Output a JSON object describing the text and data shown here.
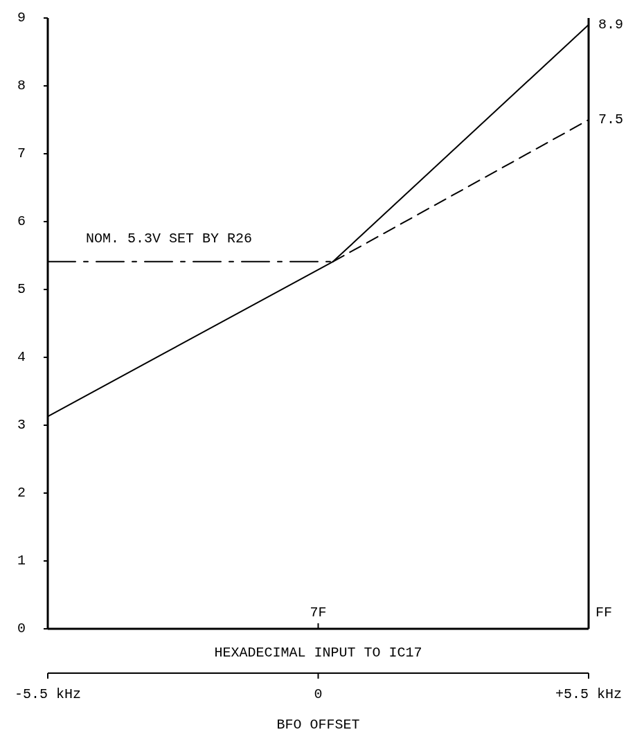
{
  "chart_data": {
    "type": "line",
    "x": [
      -5.5,
      0.3,
      5.5
    ],
    "xlim": [
      -5.5,
      5.5
    ],
    "xticks": [
      {
        "value": -5.5,
        "label": "-5.5 kHz"
      },
      0,
      {
        "value": 5.5,
        "label": "+5.5 kHz"
      }
    ],
    "xlabel": "BFO OFFSET",
    "x2label": "HEXADECIMAL INPUT TO IC17",
    "ylim": [
      0,
      9
    ],
    "yticks": [
      0,
      1,
      2,
      3,
      4,
      5,
      6,
      7,
      8,
      9
    ],
    "grid": false,
    "legend": false,
    "series": [
      {
        "color": "#000000",
        "line_style": "solid",
        "values": [
          3.13,
          5.41,
          8.9
        ],
        "value_labels": [
          null,
          null,
          "8.9"
        ]
      },
      {
        "color": "#000000",
        "line_style": "dashed",
        "x": [
          0.3,
          5.5
        ],
        "values": [
          5.41,
          7.5
        ],
        "value_labels": [
          null,
          "7.5"
        ]
      },
      {
        "name": "NOM. 5.3V SET BY R26",
        "color": "#000000",
        "line_style": "dashdot",
        "x": [
          -5.5,
          0.3
        ],
        "values": [
          5.41,
          5.41
        ]
      }
    ],
    "annotations": [
      "7F",
      "FF"
    ]
  }
}
